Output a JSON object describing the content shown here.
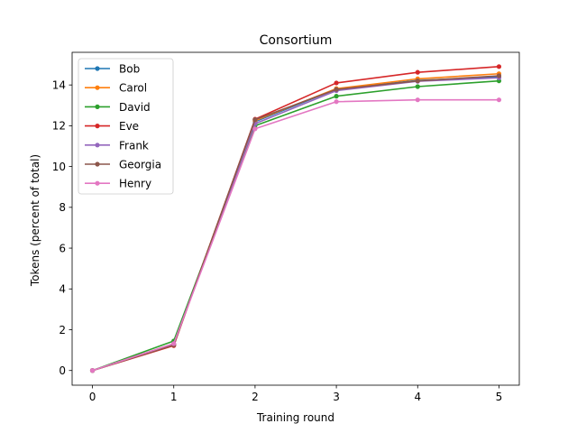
{
  "chart_data": {
    "type": "line",
    "title": "Consortium",
    "xlabel": "Training round",
    "ylabel": "Tokens (percent of total)",
    "x": [
      0,
      1,
      2,
      3,
      4,
      5
    ],
    "xlim": [
      -0.25,
      5.25
    ],
    "ylim": [
      -0.72,
      15.6
    ],
    "xticks": [
      0,
      1,
      2,
      3,
      4,
      5
    ],
    "yticks": [
      0,
      2,
      4,
      6,
      8,
      10,
      12,
      14
    ],
    "grid": false,
    "legend_position": "top-left",
    "series": [
      {
        "name": "Bob",
        "color": "#1f77b4",
        "values": [
          0,
          1.28,
          12.2,
          13.8,
          14.22,
          14.4
        ]
      },
      {
        "name": "Carol",
        "color": "#ff7f0e",
        "values": [
          0,
          1.3,
          12.25,
          13.82,
          14.3,
          14.55
        ]
      },
      {
        "name": "David",
        "color": "#2ca02c",
        "values": [
          0,
          1.45,
          12.0,
          13.45,
          13.92,
          14.2
        ]
      },
      {
        "name": "Eve",
        "color": "#d62728",
        "values": [
          0,
          1.22,
          12.32,
          14.1,
          14.62,
          14.9
        ]
      },
      {
        "name": "Frank",
        "color": "#9467bd",
        "values": [
          0,
          1.3,
          12.1,
          13.72,
          14.18,
          14.35
        ]
      },
      {
        "name": "Georgia",
        "color": "#8c564b",
        "values": [
          0,
          1.25,
          12.3,
          13.78,
          14.2,
          14.45
        ]
      },
      {
        "name": "Henry",
        "color": "#e377c2",
        "values": [
          0,
          1.32,
          11.85,
          13.18,
          13.27,
          13.27
        ]
      }
    ]
  }
}
